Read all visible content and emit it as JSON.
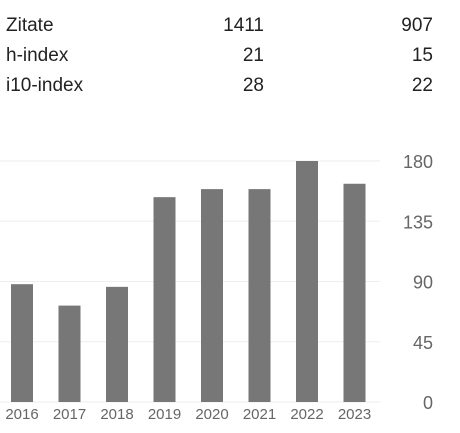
{
  "stats": {
    "rows": [
      {
        "label": "Zitate",
        "all": "1411",
        "recent": "907"
      },
      {
        "label": "h-index",
        "all": "21",
        "recent": "15"
      },
      {
        "label": "i10-index",
        "all": "28",
        "recent": "22"
      }
    ]
  },
  "chart_data": {
    "type": "bar",
    "categories": [
      "2016",
      "2017",
      "2018",
      "2019",
      "2020",
      "2021",
      "2022",
      "2023"
    ],
    "values": [
      88,
      72,
      86,
      153,
      159,
      159,
      180,
      163
    ],
    "ylim": [
      0,
      180
    ],
    "yticks": [
      "0",
      "45",
      "90",
      "135",
      "180"
    ],
    "grid": true,
    "bar_color": "#777777",
    "grid_color": "#eeeeee"
  }
}
